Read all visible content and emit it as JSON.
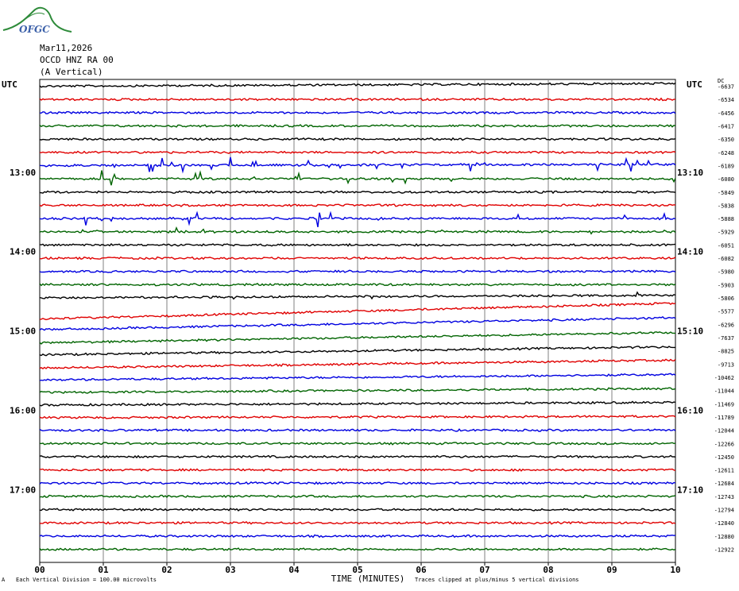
{
  "logo": {
    "text": "OFGC"
  },
  "header": {
    "date": "Mar11,2026",
    "station": "OCCD HNZ RA 00",
    "component": "(A Vertical)"
  },
  "utc_left": "UTC",
  "utc_right": "UTC",
  "dc_label": "DC",
  "footer": {
    "scale_note": "Each Vertical Division = 100.00 microvolts",
    "clip_note": "Traces clipped at plus/minus 5 vertical divisions",
    "corner_mark": "A"
  },
  "colors": {
    "trace_cycle": [
      "#000000",
      "#e00000",
      "#0000e0",
      "#006400"
    ],
    "grid": "#808080"
  },
  "chart_data": {
    "type": "line",
    "title": "",
    "xlabel": "TIME (MINUTES)",
    "ylabel": "",
    "x_ticks": [
      "00",
      "01",
      "02",
      "03",
      "04",
      "05",
      "06",
      "07",
      "08",
      "09",
      "10"
    ],
    "xlim": [
      0,
      10
    ],
    "left_time_labels": [
      {
        "row": 6.5,
        "label": "13:00"
      },
      {
        "row": 12.5,
        "label": "14:00"
      },
      {
        "row": 18.5,
        "label": "15:00"
      },
      {
        "row": 24.5,
        "label": "16:00"
      },
      {
        "row": 30.5,
        "label": "17:00"
      }
    ],
    "right_time_labels": [
      {
        "row": 6.5,
        "label": "13:10"
      },
      {
        "row": 12.5,
        "label": "14:10"
      },
      {
        "row": 18.5,
        "label": "15:10"
      },
      {
        "row": 24.5,
        "label": "16:10"
      },
      {
        "row": 30.5,
        "label": "17:10"
      }
    ],
    "trace_dc_offsets": [
      "-6637",
      "-6534",
      "-6456",
      "-6417",
      "-6350",
      "-6248",
      "-6189",
      "-6080",
      "-5849",
      "-5838",
      "-5888",
      "-5929",
      "-6051",
      "-6082",
      "-5980",
      "-5903",
      "-5806",
      "-5577",
      "-6296",
      "-7637",
      "-8825",
      "-9713",
      "-10462",
      "-11044",
      "-11469",
      "-11789",
      "-12044",
      "-12266",
      "-12450",
      "-12611",
      "-12684",
      "-12743",
      "-12794",
      "-12840",
      "-12880",
      "-12922"
    ],
    "trace_start_level": [
      0,
      0,
      0,
      0,
      0,
      0,
      0,
      0,
      0,
      0,
      0,
      0,
      0,
      0,
      0,
      0,
      0,
      0.6,
      0.4,
      0.4,
      0.3,
      0.3,
      0.2,
      0.15,
      0.1,
      0.05,
      0,
      0,
      0,
      0,
      0,
      0,
      0,
      0,
      0,
      0
    ],
    "trace_end_level": [
      -0.2,
      0,
      0,
      0,
      0,
      0,
      -0.1,
      0,
      0,
      0,
      0,
      0,
      0,
      0,
      0,
      0,
      -0.2,
      -0.6,
      -0.5,
      -0.4,
      -0.3,
      -0.3,
      -0.2,
      -0.15,
      -0.1,
      -0.05,
      0,
      0,
      0,
      0,
      0,
      0,
      0,
      0,
      0,
      0
    ],
    "event_traces": [
      {
        "row": 6,
        "level": "high"
      },
      {
        "row": 7,
        "level": "high"
      },
      {
        "row": 10,
        "level": "high"
      },
      {
        "row": 16,
        "level": "medium"
      },
      {
        "row": 11,
        "level": "low"
      }
    ],
    "grid": true
  }
}
